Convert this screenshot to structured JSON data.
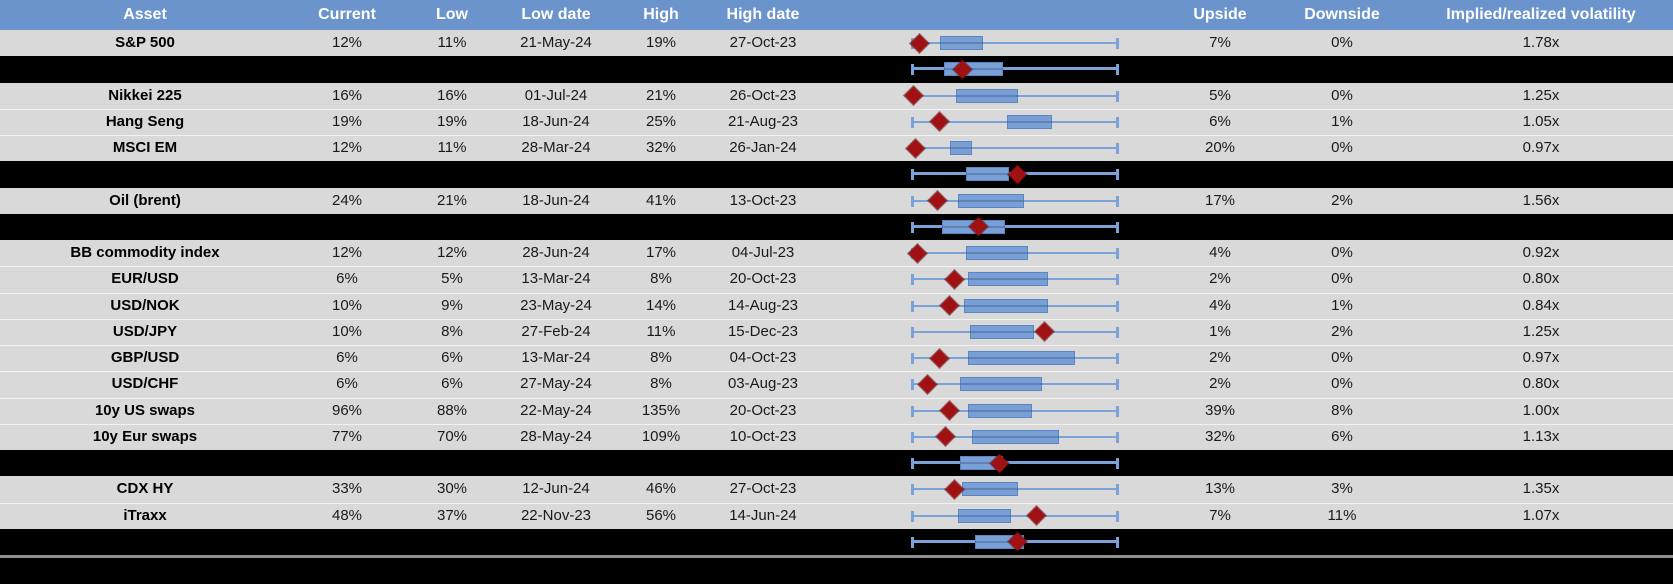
{
  "colors": {
    "header_bg": "#6B94CC",
    "row_bg": "#D9D9D9",
    "separator_bg": "#000000",
    "whisker": "#7AA2D8",
    "box_fill": "#78A0D6",
    "box_border": "#5D86C1",
    "diamond": "#A01114"
  },
  "chart_data": {
    "type": "table",
    "description": "Implied volatility overview per asset. Each row has a horizontal box-whisker plot: whisker spans the low-to-high volatility range, blue box = middle range, dark-red diamond = current level. Positions lo/hi/diamond are fractions 0-1 of the whisker span. Black separator rows contain aggregate box plots with no labels.",
    "headers": {
      "asset": "Asset",
      "current": "Current",
      "low": "Low",
      "low_date": "Low date",
      "high": "High",
      "high_date": "High date",
      "upside": "Upside",
      "downside": "Downside",
      "implied": "Implied/realized volatility"
    },
    "column_order": [
      "asset",
      "current",
      "low",
      "low_date",
      "high",
      "high_date",
      "upside",
      "downside",
      "implied"
    ],
    "rows": [
      {
        "type": "data",
        "asset": "S&P 500",
        "current": "12%",
        "low": "11%",
        "low_date": "21-May-24",
        "high": "19%",
        "high_date": "27-Oct-23",
        "upside": "7%",
        "downside": "0%",
        "implied": "1.78x",
        "box": {
          "lo": 0.13,
          "hi": 0.34,
          "diamond": 0.03
        }
      },
      {
        "type": "separator",
        "box": {
          "lo": 0.15,
          "hi": 0.44,
          "diamond": 0.24
        }
      },
      {
        "type": "data",
        "asset": "Nikkei 225",
        "current": "16%",
        "low": "16%",
        "low_date": "01-Jul-24",
        "high": "21%",
        "high_date": "26-Oct-23",
        "upside": "5%",
        "downside": "0%",
        "implied": "1.25x",
        "box": {
          "lo": 0.21,
          "hi": 0.51,
          "diamond": 0.0
        }
      },
      {
        "type": "data",
        "asset": "Hang Seng",
        "current": "19%",
        "low": "19%",
        "low_date": "18-Jun-24",
        "high": "25%",
        "high_date": "21-Aug-23",
        "upside": "6%",
        "downside": "1%",
        "implied": "1.05x",
        "box": {
          "lo": 0.46,
          "hi": 0.68,
          "diamond": 0.13
        }
      },
      {
        "type": "data",
        "asset": "MSCI EM",
        "current": "12%",
        "low": "11%",
        "low_date": "28-Mar-24",
        "high": "32%",
        "high_date": "26-Jan-24",
        "upside": "20%",
        "downside": "0%",
        "implied": "0.97x",
        "box": {
          "lo": 0.18,
          "hi": 0.29,
          "diamond": 0.01
        }
      },
      {
        "type": "separator",
        "box": {
          "lo": 0.26,
          "hi": 0.47,
          "diamond": 0.51
        }
      },
      {
        "type": "data",
        "asset": "Oil (brent)",
        "current": "24%",
        "low": "21%",
        "low_date": "18-Jun-24",
        "high": "41%",
        "high_date": "13-Oct-23",
        "upside": "17%",
        "downside": "2%",
        "implied": "1.56x",
        "box": {
          "lo": 0.22,
          "hi": 0.54,
          "diamond": 0.12
        }
      },
      {
        "type": "separator",
        "box": {
          "lo": 0.14,
          "hi": 0.45,
          "diamond": 0.32
        }
      },
      {
        "type": "data",
        "asset": "BB commodity index",
        "current": "12%",
        "low": "12%",
        "low_date": "28-Jun-24",
        "high": "17%",
        "high_date": "04-Jul-23",
        "upside": "4%",
        "downside": "0%",
        "implied": "0.92x",
        "box": {
          "lo": 0.26,
          "hi": 0.56,
          "diamond": 0.02
        }
      },
      {
        "type": "data",
        "asset": "EUR/USD",
        "current": "6%",
        "low": "5%",
        "low_date": "13-Mar-24",
        "high": "8%",
        "high_date": "20-Oct-23",
        "upside": "2%",
        "downside": "0%",
        "implied": "0.80x",
        "box": {
          "lo": 0.27,
          "hi": 0.66,
          "diamond": 0.2
        }
      },
      {
        "type": "data",
        "asset": "USD/NOK",
        "current": "10%",
        "low": "9%",
        "low_date": "23-May-24",
        "high": "14%",
        "high_date": "14-Aug-23",
        "upside": "4%",
        "downside": "1%",
        "implied": "0.84x",
        "box": {
          "lo": 0.25,
          "hi": 0.66,
          "diamond": 0.18
        }
      },
      {
        "type": "data",
        "asset": "USD/JPY",
        "current": "10%",
        "low": "8%",
        "low_date": "27-Feb-24",
        "high": "11%",
        "high_date": "15-Dec-23",
        "upside": "1%",
        "downside": "2%",
        "implied": "1.25x",
        "box": {
          "lo": 0.28,
          "hi": 0.59,
          "diamond": 0.64
        }
      },
      {
        "type": "data",
        "asset": "GBP/USD",
        "current": "6%",
        "low": "6%",
        "low_date": "13-Mar-24",
        "high": "8%",
        "high_date": "04-Oct-23",
        "upside": "2%",
        "downside": "0%",
        "implied": "0.97x",
        "box": {
          "lo": 0.27,
          "hi": 0.79,
          "diamond": 0.13
        }
      },
      {
        "type": "data",
        "asset": "USD/CHF",
        "current": "6%",
        "low": "6%",
        "low_date": "27-May-24",
        "high": "8%",
        "high_date": "03-Aug-23",
        "upside": "2%",
        "downside": "0%",
        "implied": "0.80x",
        "box": {
          "lo": 0.23,
          "hi": 0.63,
          "diamond": 0.07
        }
      },
      {
        "type": "data",
        "asset": "10y US swaps",
        "current": "96%",
        "low": "88%",
        "low_date": "22-May-24",
        "high": "135%",
        "high_date": "20-Oct-23",
        "upside": "39%",
        "downside": "8%",
        "implied": "1.00x",
        "box": {
          "lo": 0.27,
          "hi": 0.58,
          "diamond": 0.18
        }
      },
      {
        "type": "data",
        "asset": "10y Eur swaps",
        "current": "77%",
        "low": "70%",
        "low_date": "28-May-24",
        "high": "109%",
        "high_date": "10-Oct-23",
        "upside": "32%",
        "downside": "6%",
        "implied": "1.13x",
        "box": {
          "lo": 0.29,
          "hi": 0.71,
          "diamond": 0.16
        }
      },
      {
        "type": "separator",
        "box": {
          "lo": 0.23,
          "hi": 0.44,
          "diamond": 0.42
        }
      },
      {
        "type": "data",
        "asset": "CDX HY",
        "current": "33%",
        "low": "30%",
        "low_date": "12-Jun-24",
        "high": "46%",
        "high_date": "27-Oct-23",
        "upside": "13%",
        "downside": "3%",
        "implied": "1.35x",
        "box": {
          "lo": 0.24,
          "hi": 0.51,
          "diamond": 0.2
        }
      },
      {
        "type": "data",
        "asset": "iTraxx",
        "current": "48%",
        "low": "37%",
        "low_date": "22-Nov-23",
        "high": "56%",
        "high_date": "14-Jun-24",
        "upside": "7%",
        "downside": "11%",
        "implied": "1.07x",
        "box": {
          "lo": 0.22,
          "hi": 0.48,
          "diamond": 0.6
        }
      },
      {
        "type": "separator",
        "box": {
          "lo": 0.3,
          "hi": 0.54,
          "diamond": 0.51
        }
      }
    ]
  }
}
